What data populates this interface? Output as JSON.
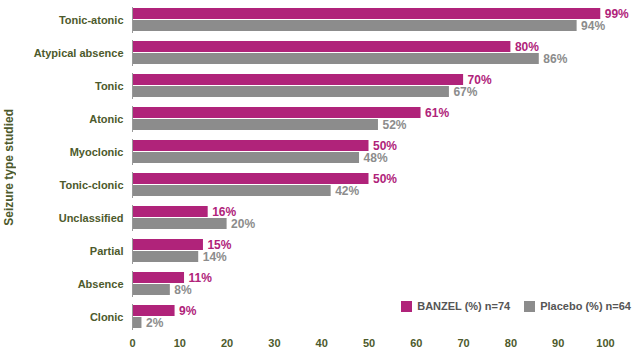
{
  "chart_data": {
    "type": "bar",
    "orientation": "horizontal",
    "y_label": "Seizure type studied",
    "categories": [
      "Tonic-atonic",
      "Atypical absence",
      "Tonic",
      "Atonic",
      "Myoclonic",
      "Tonic-clonic",
      "Unclassified",
      "Partial",
      "Absence",
      "Clonic"
    ],
    "series": [
      {
        "name": "BANZEL (%) n=74",
        "color": "#b0237a",
        "values": [
          99,
          80,
          70,
          61,
          50,
          50,
          16,
          15,
          11,
          9
        ],
        "value_labels": [
          "99%",
          "80%",
          "70%",
          "61%",
          "50%",
          "50%",
          "16%",
          "15%",
          "11%",
          "9%"
        ]
      },
      {
        "name": "Placebo (%) n=64",
        "color": "#8c8c8c",
        "values": [
          94,
          86,
          67,
          52,
          48,
          42,
          20,
          14,
          8,
          2
        ],
        "value_labels": [
          "94%",
          "86%",
          "67%",
          "52%",
          "48%",
          "42%",
          "20%",
          "14%",
          "8%",
          "2%"
        ]
      }
    ],
    "xlim": [
      0,
      100
    ],
    "xticks": [
      0,
      10,
      20,
      30,
      40,
      50,
      60,
      70,
      80,
      90,
      100
    ],
    "grid": false,
    "data_labels": true,
    "legend": "bottom-right"
  }
}
